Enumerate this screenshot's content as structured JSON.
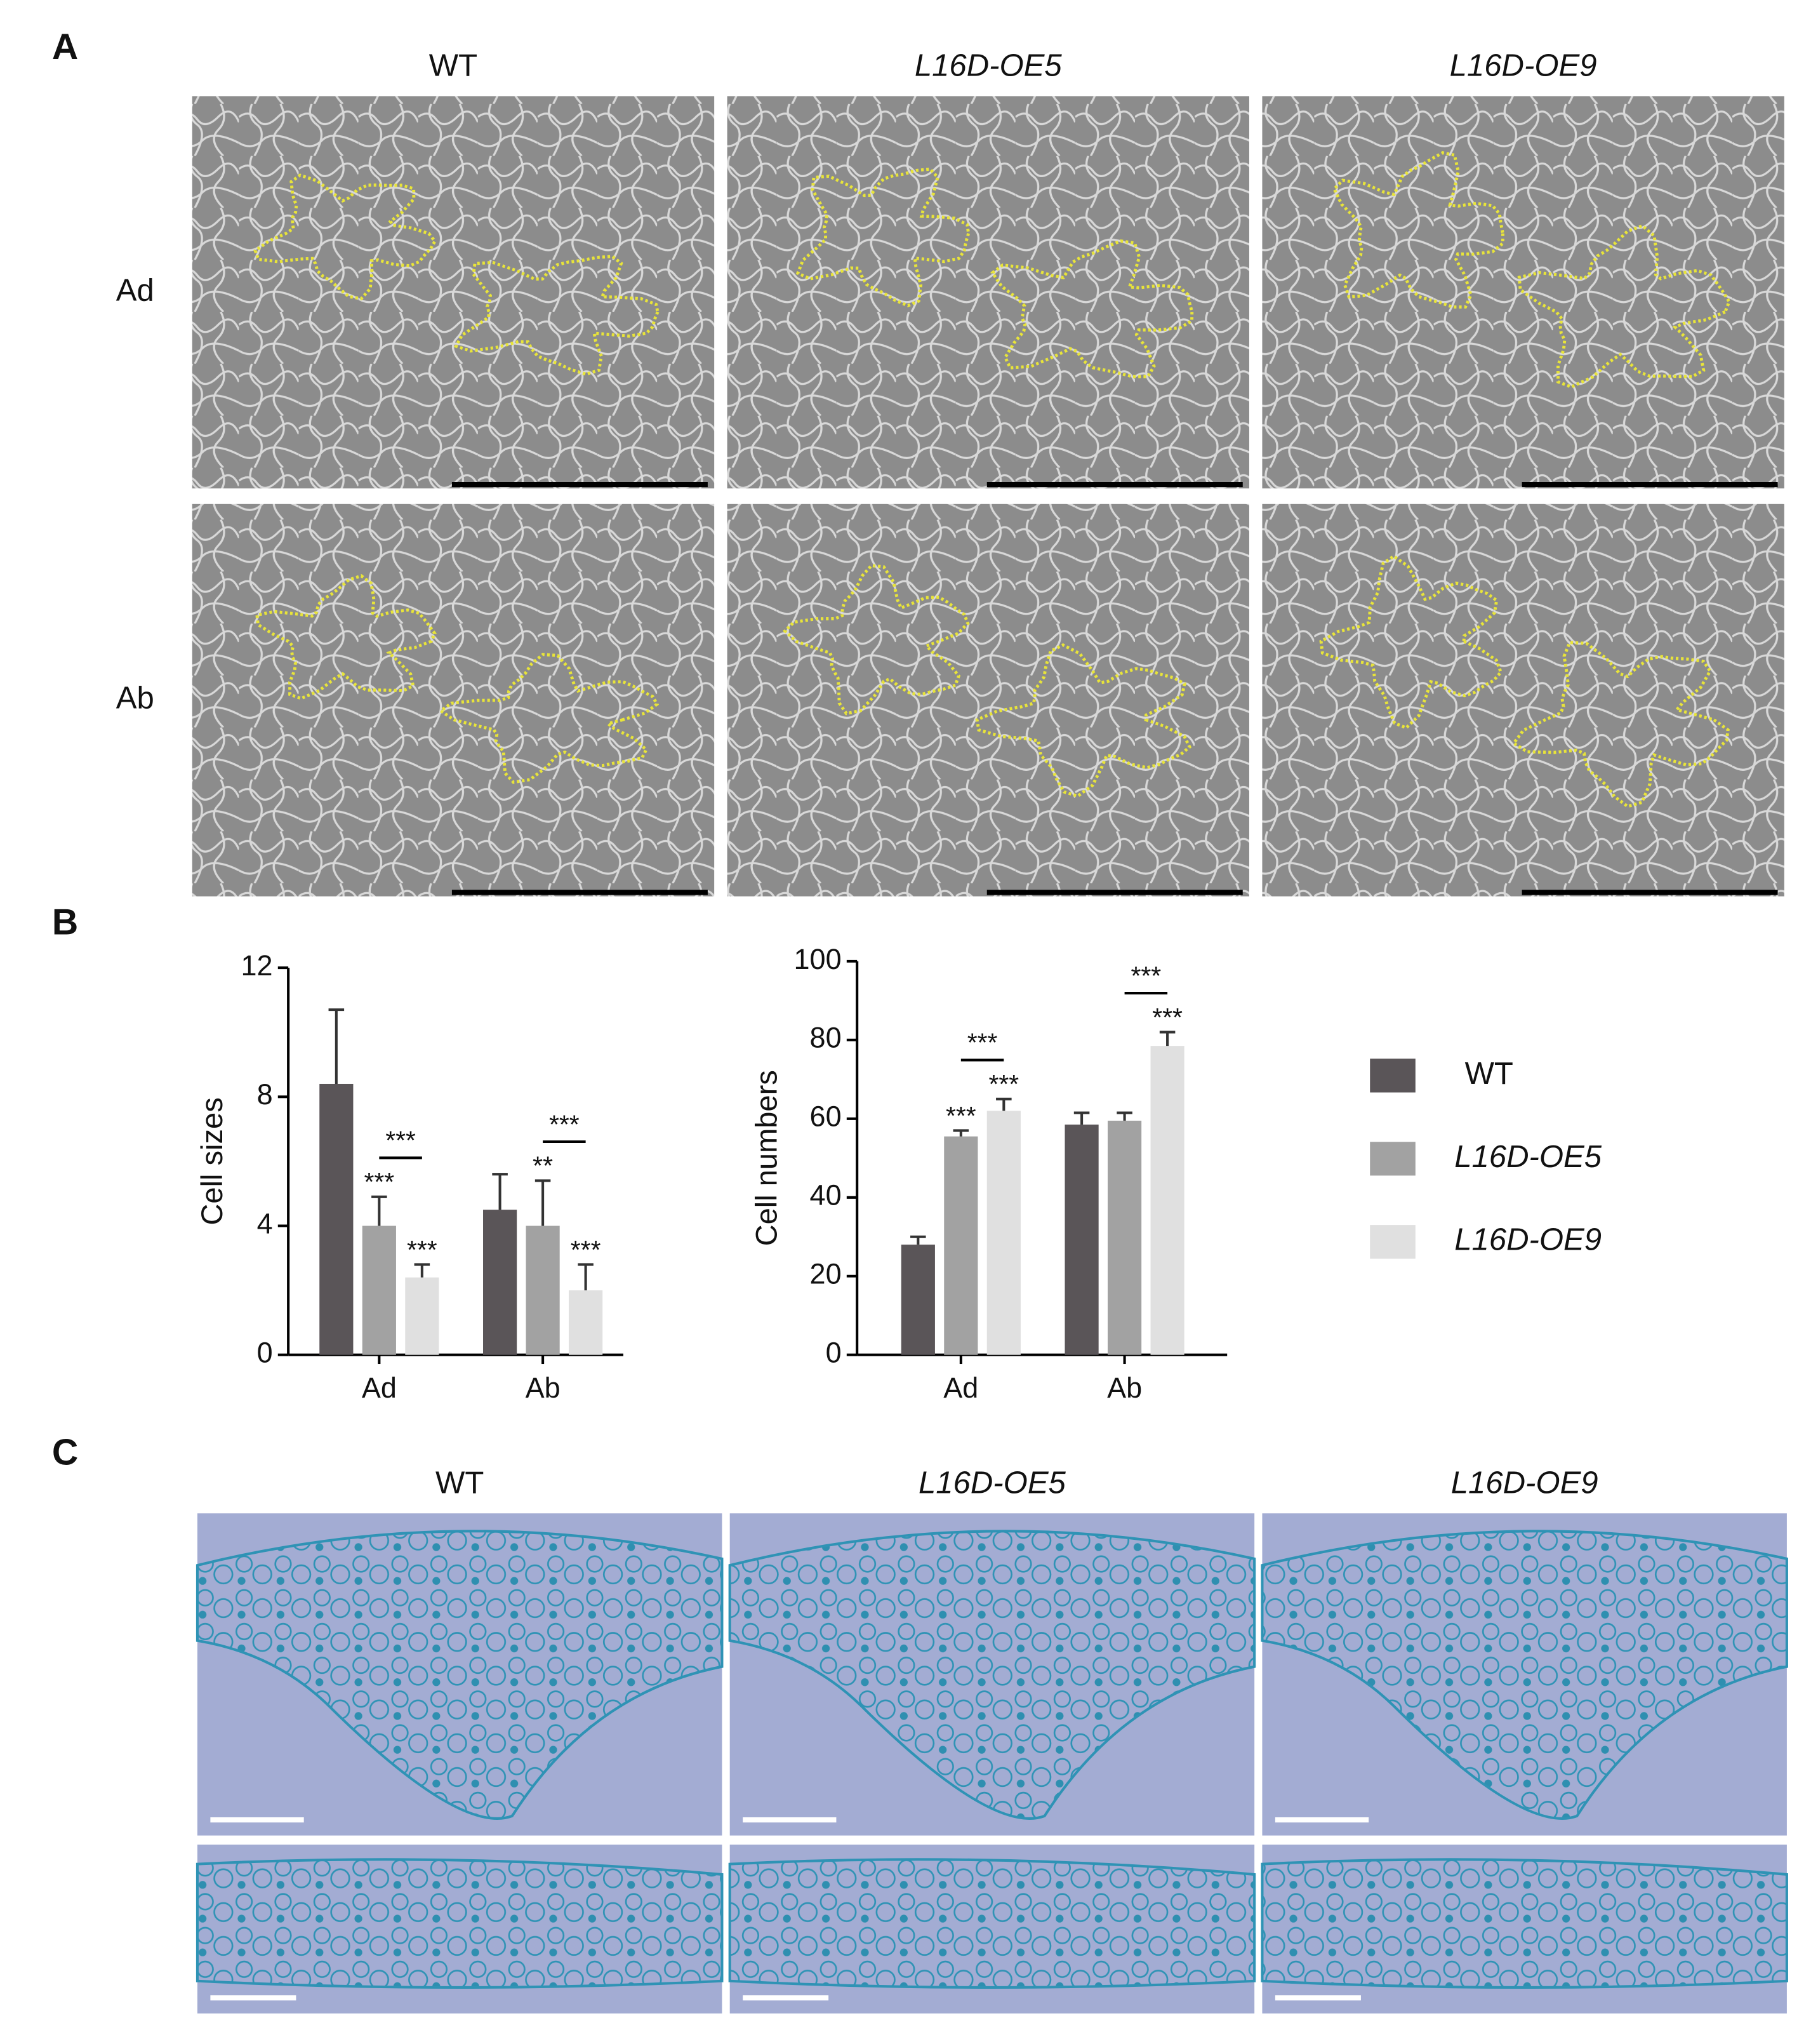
{
  "panel_labels": [
    "A",
    "B",
    "C"
  ],
  "panel_a": {
    "columns": [
      "WT",
      "L16D-OE5",
      "L16D-OE9"
    ],
    "rows": [
      "Ad",
      "Ab"
    ]
  },
  "panel_c": {
    "columns": [
      "WT",
      "L16D-OE5",
      "L16D-OE9"
    ]
  },
  "chart_data": [
    {
      "type": "bar",
      "y_label": "Cell sizes",
      "categories": [
        "Ad",
        "Ab"
      ],
      "ylim": [
        0,
        12
      ],
      "yticks": [
        0,
        4,
        8,
        12
      ],
      "series": [
        {
          "color": "#5a5558",
          "values": [
            8.4,
            4.5
          ],
          "errors": [
            2.3,
            1.1
          ],
          "stars": [
            null,
            null
          ]
        },
        {
          "color": "#a2a2a2",
          "values": [
            4.0,
            4.0
          ],
          "errors": [
            0.9,
            1.4
          ],
          "stars": [
            "***",
            "**"
          ]
        },
        {
          "color": "#e0e0e0",
          "values": [
            2.4,
            2.0
          ],
          "errors": [
            0.4,
            0.8
          ],
          "stars": [
            "***",
            "***"
          ]
        }
      ],
      "brackets": [
        "***",
        "***"
      ]
    },
    {
      "type": "bar",
      "y_label": "Cell numbers",
      "categories": [
        "Ad",
        "Ab"
      ],
      "ylim": [
        0,
        100
      ],
      "yticks": [
        0,
        20,
        40,
        60,
        80,
        100
      ],
      "series": [
        {
          "name": "WT",
          "color": "#5a5558",
          "values": [
            28,
            58.5
          ],
          "errors": [
            2,
            3
          ],
          "stars": [
            null,
            null
          ]
        },
        {
          "name": "L16D-OE5",
          "color": "#a2a2a2",
          "values": [
            55.5,
            59.5
          ],
          "errors": [
            1.5,
            2
          ],
          "stars": [
            "***",
            null
          ]
        },
        {
          "name": "L16D-OE9",
          "color": "#e0e0e0",
          "values": [
            62,
            78.5
          ],
          "errors": [
            3,
            3.5
          ],
          "stars": [
            "***",
            "***"
          ]
        }
      ],
      "brackets": [
        "***",
        "***"
      ]
    }
  ]
}
